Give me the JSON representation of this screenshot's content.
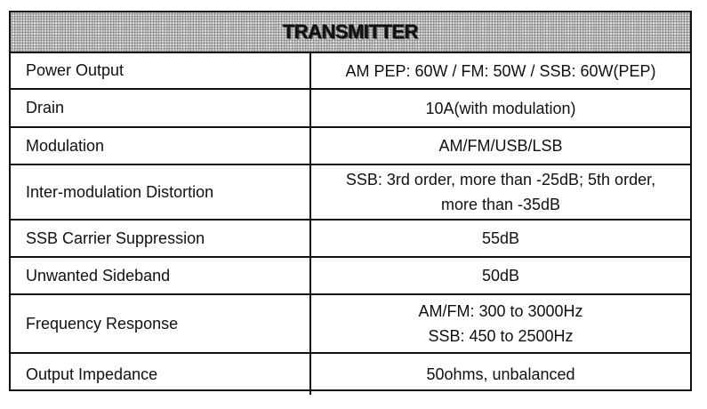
{
  "table": {
    "title": "TRANSMITTER",
    "rows": [
      {
        "label": "Power Output",
        "value": [
          "AM PEP: 60W / FM: 50W / SSB: 60W(PEP)"
        ]
      },
      {
        "label": "Drain",
        "value": [
          "10A(with modulation)"
        ]
      },
      {
        "label": "Modulation",
        "value": [
          "AM/FM/USB/LSB"
        ]
      },
      {
        "label": "Inter-modulation Distortion",
        "value": [
          "SSB: 3rd order, more than -25dB; 5th order, more than -35dB"
        ]
      },
      {
        "label": "SSB Carrier Suppression",
        "value": [
          "55dB"
        ]
      },
      {
        "label": "Unwanted Sideband",
        "value": [
          "50dB"
        ]
      },
      {
        "label": "Frequency Response",
        "value": [
          "AM/FM: 300 to 3000Hz",
          "SSB: 450 to 2500Hz"
        ]
      },
      {
        "label": "Output Impedance",
        "value": [
          "50ohms, unbalanced"
        ]
      }
    ]
  }
}
